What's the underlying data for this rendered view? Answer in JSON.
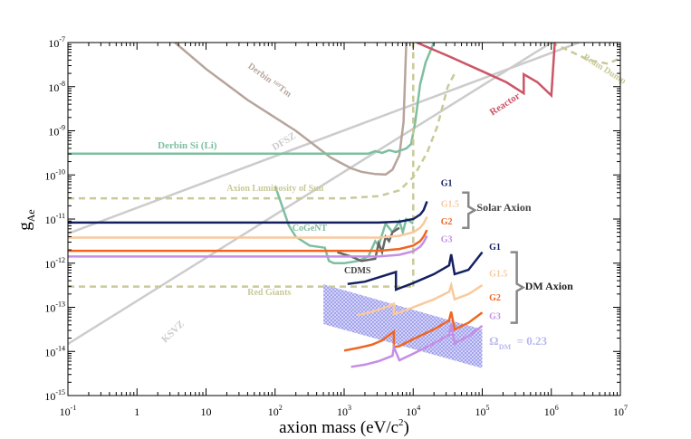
{
  "chart_data": {
    "type": "line",
    "xlabel": "axion mass (eV/c",
    "xlabel_sup": "2",
    "xlabel_end": ")",
    "ylabel": "g",
    "ylabel_sub": "Ae",
    "xscale": "log",
    "yscale": "log",
    "xlim_exp": [
      -1,
      7
    ],
    "ylim_exp": [
      -15,
      -7
    ],
    "x_ticks": [
      {
        "exp": -1,
        "label": "10",
        "sup": "-1"
      },
      {
        "exp": 0,
        "label": "1",
        "sup": ""
      },
      {
        "exp": 1,
        "label": "10",
        "sup": ""
      },
      {
        "exp": 2,
        "label": "10",
        "sup": "2"
      },
      {
        "exp": 3,
        "label": "10",
        "sup": "3"
      },
      {
        "exp": 4,
        "label": "10",
        "sup": "4"
      },
      {
        "exp": 5,
        "label": "10",
        "sup": "5"
      },
      {
        "exp": 6,
        "label": "10",
        "sup": "6"
      },
      {
        "exp": 7,
        "label": "10",
        "sup": "7"
      }
    ],
    "y_ticks": [
      {
        "exp": -15,
        "label": "10",
        "sup": "-15"
      },
      {
        "exp": -14,
        "label": "10",
        "sup": "-14"
      },
      {
        "exp": -13,
        "label": "10",
        "sup": "-13"
      },
      {
        "exp": -12,
        "label": "10",
        "sup": "-12"
      },
      {
        "exp": -11,
        "label": "10",
        "sup": "-11"
      },
      {
        "exp": -10,
        "label": "10",
        "sup": "-10"
      },
      {
        "exp": -9,
        "label": "10",
        "sup": "-9"
      },
      {
        "exp": -8,
        "label": "10",
        "sup": "-8"
      },
      {
        "exp": -7,
        "label": "10",
        "sup": "-7"
      }
    ],
    "series": [
      {
        "name": "KSVZ",
        "color": "#cccccc",
        "width": 2.5,
        "dash": "",
        "points": [
          [
            -1,
            -13.83
          ],
          [
            6.0,
            -7.0
          ]
        ]
      },
      {
        "name": "DFSZ",
        "color": "#cccccc",
        "width": 2.5,
        "dash": "",
        "points": [
          [
            -1,
            -11.33
          ],
          [
            6.4,
            -7.0
          ]
        ]
      },
      {
        "name": "Derbin 169Tm",
        "color": "#b7a49b",
        "width": 2.5,
        "dash": "",
        "points": [
          [
            0.55,
            -7.0
          ],
          [
            1.0,
            -7.6
          ],
          [
            1.6,
            -8.3
          ],
          [
            2.3,
            -9.0
          ],
          [
            2.8,
            -9.6
          ],
          [
            3.1,
            -9.85
          ],
          [
            3.25,
            -9.93
          ],
          [
            3.45,
            -9.98
          ],
          [
            3.6,
            -9.99
          ],
          [
            3.7,
            -9.88
          ],
          [
            3.8,
            -9.55
          ],
          [
            3.86,
            -8.8
          ],
          [
            3.9,
            -7.0
          ]
        ]
      },
      {
        "name": "Derbin Si (Li)",
        "color": "#7dbf9f",
        "width": 2.5,
        "dash": "",
        "points": [
          [
            -1,
            -9.52
          ],
          [
            3.0,
            -9.52
          ],
          [
            3.35,
            -9.52
          ],
          [
            3.45,
            -9.46
          ],
          [
            3.55,
            -9.5
          ],
          [
            3.65,
            -9.44
          ],
          [
            3.75,
            -9.48
          ],
          [
            3.9,
            -9.4
          ],
          [
            3.97,
            -9.3
          ],
          [
            4.03,
            -8.8
          ],
          [
            4.1,
            -7.95
          ],
          [
            4.18,
            -7.45
          ],
          [
            4.3,
            -7.0
          ]
        ]
      },
      {
        "name": "Beam Dump",
        "color": "#c9c999",
        "width": 2.5,
        "dash": "7,5",
        "points": [
          [
            6.0,
            -7.0
          ],
          [
            6.55,
            -7.4
          ],
          [
            6.82,
            -7.48
          ],
          [
            7.0,
            -7.35
          ]
        ]
      },
      {
        "name": "Reactor",
        "color": "#cc5566",
        "width": 2.5,
        "dash": "",
        "points": [
          [
            4.05,
            -7.0
          ],
          [
            4.5,
            -7.3
          ],
          [
            5.0,
            -7.65
          ],
          [
            5.35,
            -7.9
          ],
          [
            5.6,
            -8.15
          ],
          [
            5.6,
            -7.72
          ],
          [
            5.8,
            -7.9
          ],
          [
            6.0,
            -8.2
          ],
          [
            6.05,
            -7.0
          ]
        ]
      },
      {
        "name": "Solar luminosity",
        "color": "#c9c999",
        "width": 2.5,
        "dash": "7,5",
        "points": [
          [
            -1,
            -10.53
          ],
          [
            3.0,
            -10.53
          ],
          [
            3.5,
            -10.48
          ],
          [
            3.8,
            -10.35
          ],
          [
            4.0,
            -10.05
          ],
          [
            4.2,
            -9.5
          ],
          [
            4.35,
            -8.9
          ],
          [
            4.5,
            -8.0
          ],
          [
            4.6,
            -7.7
          ]
        ]
      },
      {
        "name": "Red Giants",
        "color": "#c9c999",
        "width": 2.5,
        "dash": "7,5",
        "points": [
          [
            -1,
            -12.53
          ],
          [
            4.0,
            -12.53
          ]
        ]
      },
      {
        "name": "Red Giants vertical",
        "color": "#c9c999",
        "width": 2.5,
        "dash": "7,5",
        "points": [
          [
            4.0,
            -12.53
          ],
          [
            4.0,
            -7.0
          ]
        ]
      },
      {
        "name": "CoGeNT",
        "color": "#7dbf9f",
        "width": 2.5,
        "dash": "",
        "points": [
          [
            2.0,
            -10.25
          ],
          [
            2.2,
            -11.15
          ],
          [
            2.3,
            -11.4
          ],
          [
            2.5,
            -11.6
          ],
          [
            2.72,
            -11.65
          ],
          [
            2.78,
            -11.95
          ],
          [
            2.85,
            -12.0
          ],
          [
            3.0,
            -12.0
          ],
          [
            3.2,
            -11.95
          ],
          [
            3.35,
            -11.85
          ],
          [
            3.45,
            -11.5
          ],
          [
            3.5,
            -11.6
          ],
          [
            3.6,
            -11.1
          ],
          [
            3.7,
            -11.3
          ],
          [
            3.8,
            -11.05
          ],
          [
            3.85,
            -11.3
          ],
          [
            3.9,
            -11.0
          ],
          [
            4.0,
            -11.1
          ]
        ]
      },
      {
        "name": "CDMS",
        "color": "#666666",
        "width": 2.5,
        "dash": "",
        "points": [
          [
            2.9,
            -11.75
          ],
          [
            3.1,
            -11.85
          ],
          [
            3.25,
            -11.95
          ],
          [
            3.45,
            -11.9
          ],
          [
            3.5,
            -11.55
          ],
          [
            3.55,
            -11.75
          ],
          [
            3.6,
            -11.4
          ],
          [
            3.65,
            -11.5
          ],
          [
            3.7,
            -11.3
          ],
          [
            3.8,
            -11.2
          ]
        ]
      },
      {
        "name": "Solar G1",
        "color": "#142060",
        "width": 2.5,
        "dash": "",
        "points": [
          [
            -1,
            -11.08
          ],
          [
            3.5,
            -11.08
          ],
          [
            3.8,
            -11.06
          ],
          [
            4.0,
            -11.0
          ],
          [
            4.1,
            -10.9
          ],
          [
            4.15,
            -10.8
          ],
          [
            4.2,
            -10.6
          ]
        ]
      },
      {
        "name": "Solar G1.5",
        "color": "#f9c99b",
        "width": 2.5,
        "dash": "",
        "points": [
          [
            -1,
            -11.42
          ],
          [
            3.5,
            -11.42
          ],
          [
            3.8,
            -11.38
          ],
          [
            4.0,
            -11.3
          ],
          [
            4.1,
            -11.2
          ],
          [
            4.15,
            -11.1
          ],
          [
            4.2,
            -10.95
          ]
        ]
      },
      {
        "name": "Solar G2",
        "color": "#ee6622",
        "width": 2.5,
        "dash": "",
        "points": [
          [
            -1,
            -11.72
          ],
          [
            3.5,
            -11.72
          ],
          [
            3.8,
            -11.68
          ],
          [
            4.0,
            -11.6
          ],
          [
            4.1,
            -11.5
          ],
          [
            4.15,
            -11.4
          ],
          [
            4.2,
            -11.25
          ]
        ]
      },
      {
        "name": "Solar G3",
        "color": "#c58ee6",
        "width": 2.5,
        "dash": "",
        "points": [
          [
            -1,
            -11.85
          ],
          [
            3.5,
            -11.85
          ],
          [
            3.8,
            -11.81
          ],
          [
            4.0,
            -11.73
          ],
          [
            4.1,
            -11.63
          ],
          [
            4.15,
            -11.53
          ],
          [
            4.2,
            -11.38
          ]
        ]
      },
      {
        "name": "DM G1",
        "color": "#142060",
        "width": 2.5,
        "dash": "",
        "points": [
          [
            3.05,
            -12.47
          ],
          [
            3.3,
            -12.42
          ],
          [
            3.5,
            -12.32
          ],
          [
            3.75,
            -12.2
          ],
          [
            3.75,
            -12.6
          ],
          [
            3.8,
            -12.57
          ],
          [
            4.0,
            -12.45
          ],
          [
            4.3,
            -12.25
          ],
          [
            4.52,
            -12.05
          ],
          [
            4.55,
            -11.8
          ],
          [
            4.6,
            -12.25
          ],
          [
            4.8,
            -12.15
          ],
          [
            5.0,
            -11.75
          ]
        ]
      },
      {
        "name": "DM G1.5",
        "color": "#f9c99b",
        "width": 2.5,
        "dash": "",
        "points": [
          [
            3.2,
            -13.18
          ],
          [
            3.4,
            -13.1
          ],
          [
            3.6,
            -13.0
          ],
          [
            3.72,
            -12.92
          ],
          [
            3.72,
            -13.15
          ],
          [
            3.8,
            -13.12
          ],
          [
            4.0,
            -13.0
          ],
          [
            4.3,
            -12.82
          ],
          [
            4.52,
            -12.65
          ],
          [
            4.55,
            -12.5
          ],
          [
            4.6,
            -12.82
          ],
          [
            4.8,
            -12.7
          ],
          [
            5.0,
            -12.5
          ]
        ]
      },
      {
        "name": "DM G2",
        "color": "#ee6622",
        "width": 2.5,
        "dash": "",
        "points": [
          [
            3.0,
            -13.98
          ],
          [
            3.2,
            -13.92
          ],
          [
            3.4,
            -13.85
          ],
          [
            3.55,
            -13.75
          ],
          [
            3.72,
            -13.55
          ],
          [
            3.72,
            -13.9
          ],
          [
            3.8,
            -13.88
          ],
          [
            4.0,
            -13.72
          ],
          [
            4.3,
            -13.5
          ],
          [
            4.52,
            -13.3
          ],
          [
            4.55,
            -13.1
          ],
          [
            4.6,
            -13.5
          ],
          [
            4.8,
            -13.35
          ],
          [
            5.0,
            -13.12
          ]
        ]
      },
      {
        "name": "DM G3",
        "color": "#c58ee6",
        "width": 2.5,
        "dash": "",
        "points": [
          [
            3.1,
            -14.35
          ],
          [
            3.3,
            -14.3
          ],
          [
            3.5,
            -14.22
          ],
          [
            3.7,
            -14.1
          ],
          [
            3.72,
            -13.9
          ],
          [
            3.8,
            -14.2
          ],
          [
            4.0,
            -14.05
          ],
          [
            4.3,
            -13.82
          ],
          [
            4.52,
            -13.62
          ],
          [
            4.55,
            -13.4
          ],
          [
            4.6,
            -13.82
          ],
          [
            4.8,
            -13.65
          ],
          [
            5.0,
            -13.42
          ]
        ]
      }
    ],
    "band": {
      "name": "Omega_DM = 0.23",
      "color": "#9999ee",
      "points": [
        [
          2.7,
          -12.48
        ],
        [
          5.0,
          -13.5
        ],
        [
          5.0,
          -14.38
        ],
        [
          2.7,
          -13.38
        ]
      ]
    },
    "annotations": [
      {
        "text": "Derbin Si (Li)",
        "x": 0.3,
        "y": -9.4,
        "color": "#7dbf9f",
        "size": 11,
        "rotate": 0,
        "anchor": "start"
      },
      {
        "text": "Axion Luminosity of Sun",
        "x": 1.3,
        "y": -10.36,
        "color": "#c9c999",
        "size": 10,
        "rotate": 0,
        "anchor": "start"
      },
      {
        "text": "CoGeNT",
        "x": 2.25,
        "y": -11.27,
        "color": "#7dbf9f",
        "size": 10,
        "rotate": 0,
        "anchor": "start"
      },
      {
        "text": "CDMS",
        "x": 3.0,
        "y": -12.23,
        "color": "#444444",
        "size": 10,
        "rotate": 0,
        "anchor": "start"
      },
      {
        "text": "Red Giants",
        "x": 1.6,
        "y": -12.72,
        "color": "#c9c999",
        "size": 10,
        "rotate": 0,
        "anchor": "start"
      },
      {
        "text": "Derbin ¹⁶⁹Tm",
        "x": 1.9,
        "y": -7.9,
        "color": "#b7a49b",
        "size": 10,
        "rotate": 36,
        "anchor": "middle"
      },
      {
        "text": "DFSZ",
        "x": 2.15,
        "y": -9.3,
        "color": "#cccccc",
        "size": 11,
        "rotate": -31,
        "anchor": "middle"
      },
      {
        "text": "KSVZ",
        "x": 0.55,
        "y": -13.6,
        "color": "#cccccc",
        "size": 11,
        "rotate": -44,
        "anchor": "middle"
      },
      {
        "text": "Reactor",
        "x": 5.35,
        "y": -8.45,
        "color": "#cc5566",
        "size": 11,
        "rotate": -33,
        "anchor": "middle"
      },
      {
        "text": "Beam Dump",
        "x": 6.75,
        "y": -7.65,
        "color": "#c9c999",
        "size": 10,
        "rotate": 32,
        "anchor": "middle"
      },
      {
        "text": "G1",
        "x": 4.4,
        "y": -10.25,
        "color": "#142060",
        "size": 10,
        "rotate": 0,
        "anchor": "start"
      },
      {
        "text": "G1.5",
        "x": 4.4,
        "y": -10.72,
        "color": "#f9c99b",
        "size": 10,
        "rotate": 0,
        "anchor": "start"
      },
      {
        "text": "G2",
        "x": 4.4,
        "y": -11.12,
        "color": "#ee6622",
        "size": 10,
        "rotate": 0,
        "anchor": "start"
      },
      {
        "text": "G3",
        "x": 4.4,
        "y": -11.52,
        "color": "#c58ee6",
        "size": 10,
        "rotate": 0,
        "anchor": "start"
      },
      {
        "text": "Solar Axion",
        "x": 4.92,
        "y": -10.82,
        "color": "#444444",
        "size": 12,
        "rotate": 0,
        "anchor": "start"
      },
      {
        "text": "G1",
        "x": 5.1,
        "y": -11.7,
        "color": "#142060",
        "size": 10,
        "rotate": 0,
        "anchor": "start"
      },
      {
        "text": "G1.5",
        "x": 5.1,
        "y": -12.3,
        "color": "#f9c99b",
        "size": 10,
        "rotate": 0,
        "anchor": "start"
      },
      {
        "text": "G2",
        "x": 5.1,
        "y": -12.85,
        "color": "#ee6622",
        "size": 10,
        "rotate": 0,
        "anchor": "start"
      },
      {
        "text": "G3",
        "x": 5.1,
        "y": -13.27,
        "color": "#c58ee6",
        "size": 10,
        "rotate": 0,
        "anchor": "start"
      },
      {
        "text": "DM Axion",
        "x": 5.62,
        "y": -12.6,
        "color": "#222222",
        "size": 12,
        "rotate": 0,
        "anchor": "start"
      },
      {
        "text": "Ω",
        "x": 5.1,
        "y": -13.85,
        "color": "#b8b8f0",
        "size": 13,
        "rotate": 0,
        "anchor": "start"
      },
      {
        "text": "DM",
        "x": 5.24,
        "y": -13.95,
        "color": "#b8b8f0",
        "size": 8,
        "rotate": 0,
        "anchor": "start"
      },
      {
        "text": "= 0.23",
        "x": 5.5,
        "y": -13.85,
        "color": "#b8b8f0",
        "size": 13,
        "rotate": 0,
        "anchor": "start"
      }
    ],
    "brackets": [
      {
        "x": 4.8,
        "y1": -10.4,
        "y2": -11.2,
        "color": "#888888"
      },
      {
        "x": 5.5,
        "y1": -11.75,
        "y2": -13.35,
        "color": "#888888"
      }
    ]
  }
}
